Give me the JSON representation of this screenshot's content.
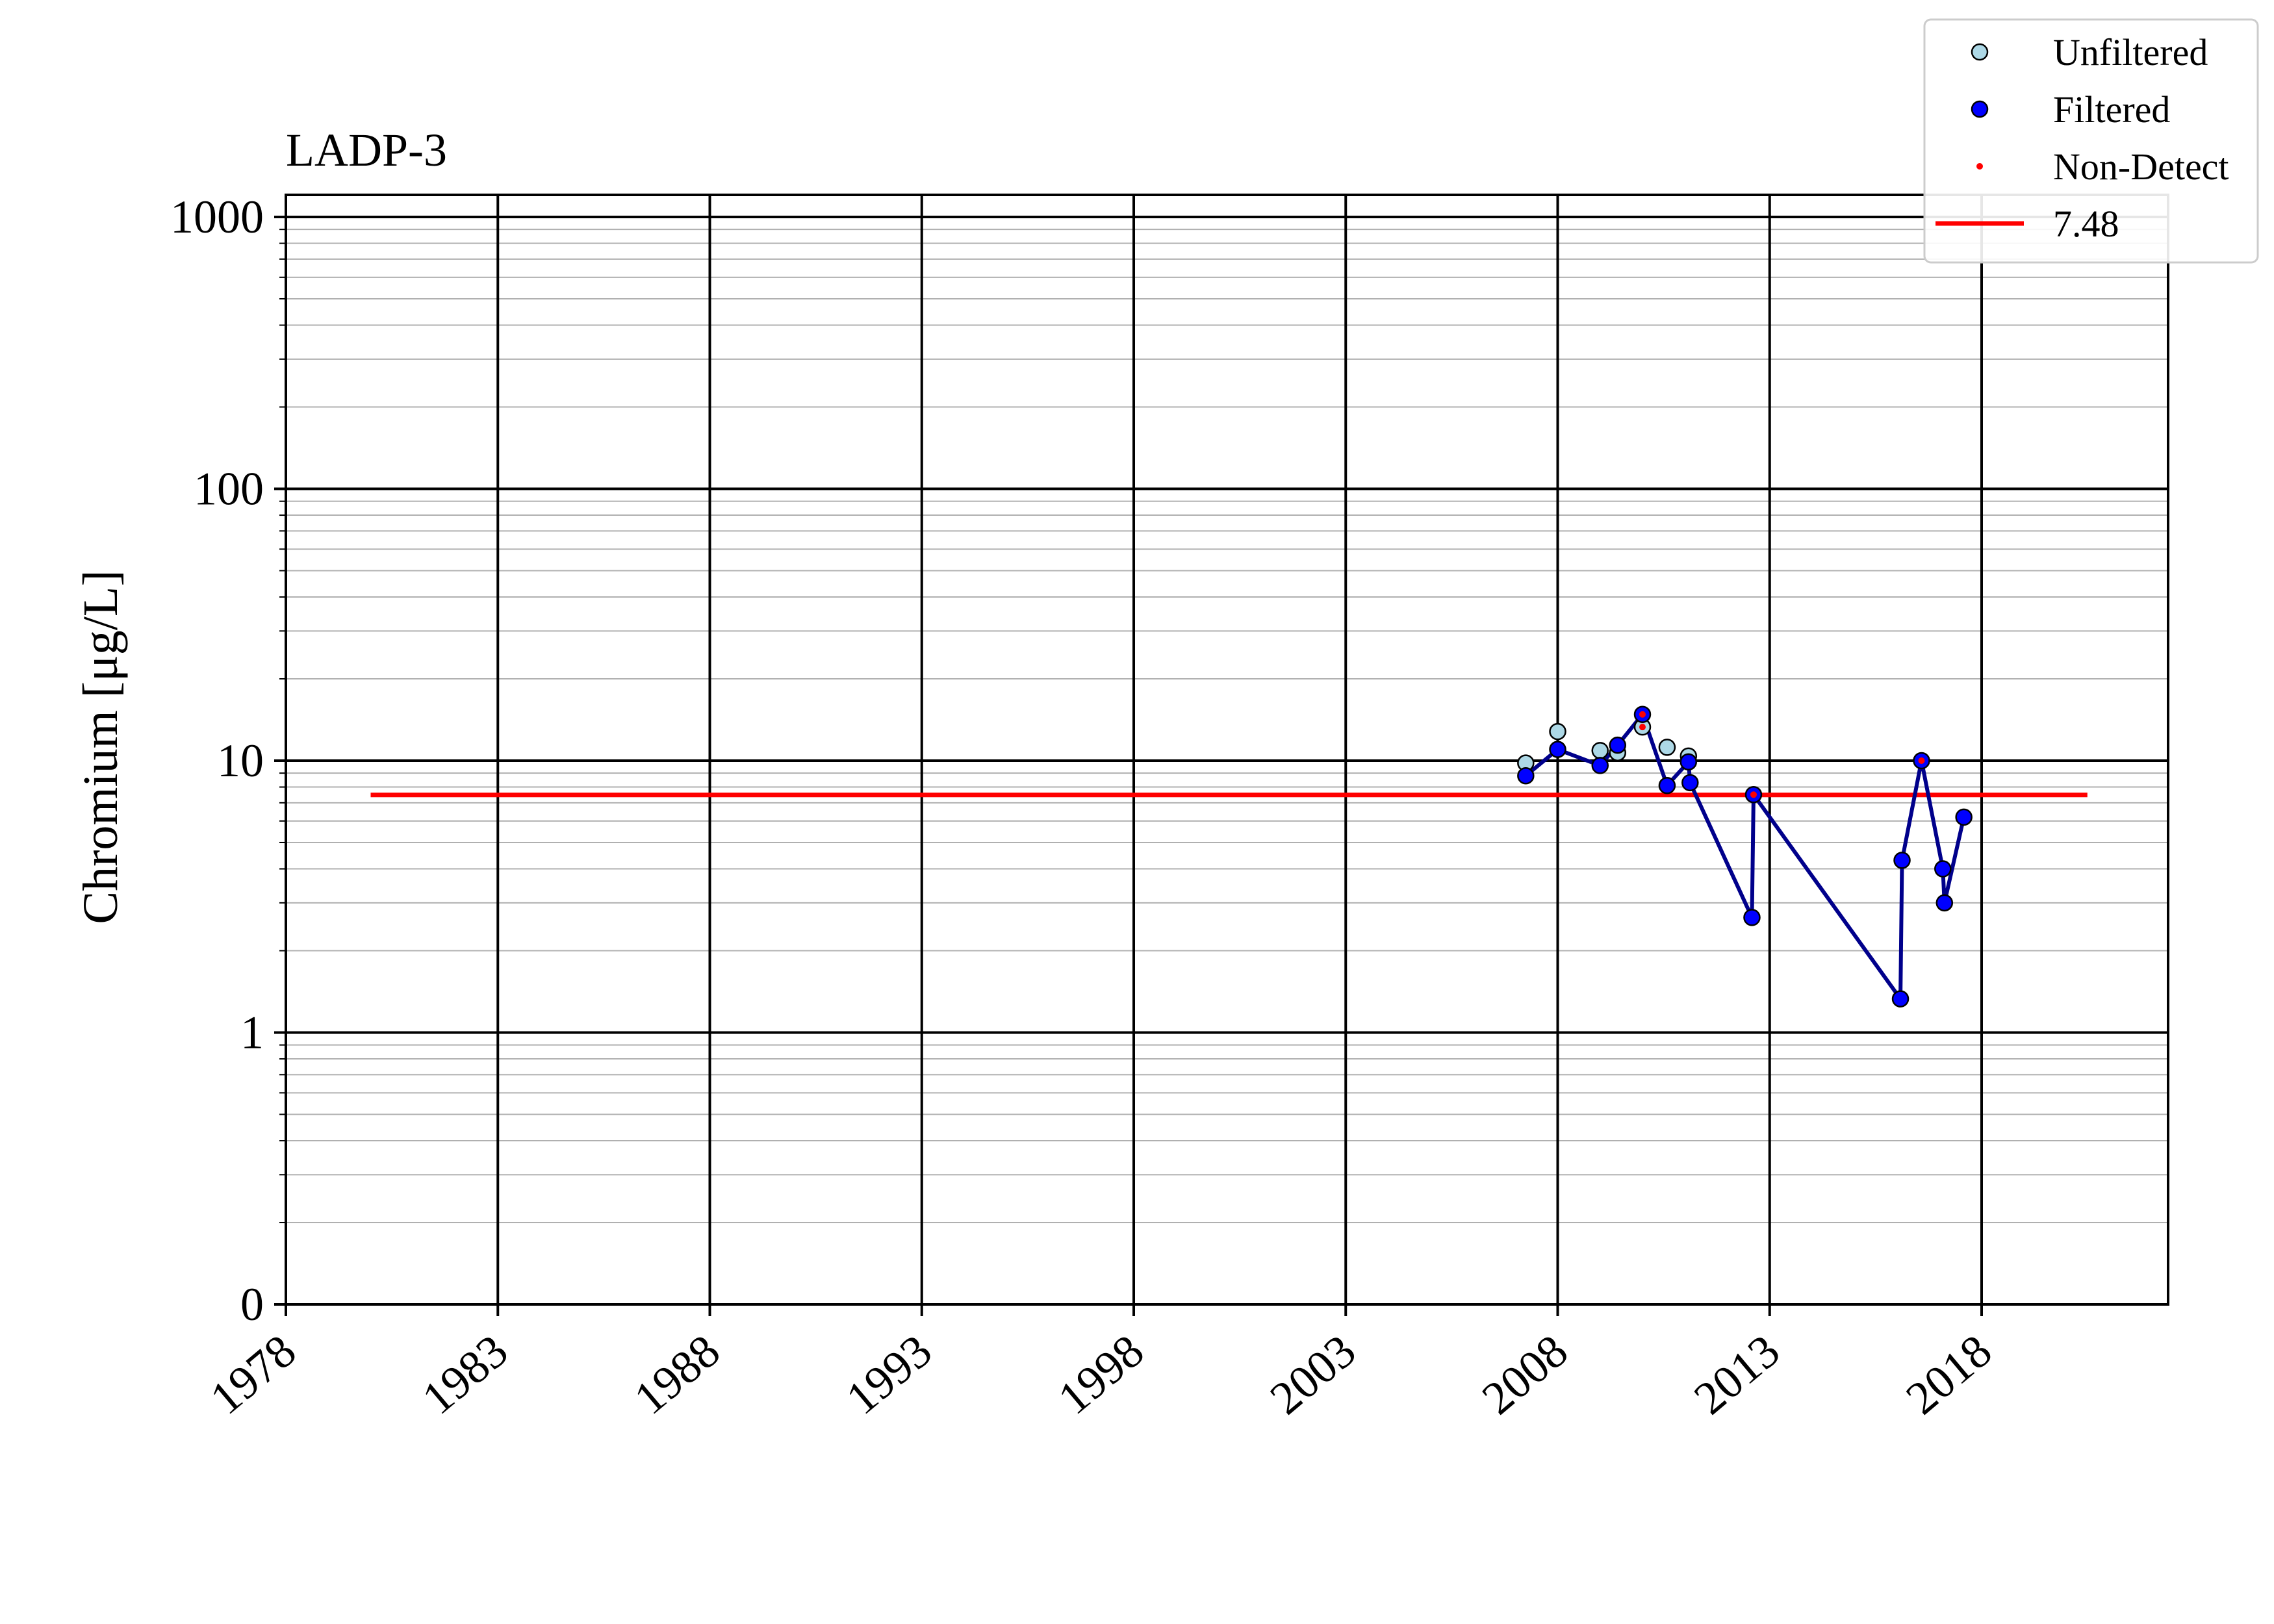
{
  "chart_data": {
    "type": "line",
    "title": "LADP-3",
    "xlabel": "",
    "ylabel": "Chromium [μg/L]",
    "xscale": "time",
    "yscale": "log",
    "xlim": [
      "1978-01-01",
      "2020-12-31"
    ],
    "x_ticks": [
      "1978",
      "1983",
      "1988",
      "1993",
      "1998",
      "2003",
      "2008",
      "2013",
      "2018"
    ],
    "y_ticks": [
      {
        "value": 0.1,
        "label": "0"
      },
      {
        "value": 1,
        "label": "1"
      },
      {
        "value": 10,
        "label": "10"
      },
      {
        "value": 100,
        "label": "100"
      },
      {
        "value": 1000,
        "label": "1000"
      }
    ],
    "ylim": [
      0.1,
      1200
    ],
    "grid": {
      "major": true,
      "minor_y": true
    },
    "legend": {
      "placement": "top-right",
      "entries": [
        {
          "label": "Unfiltered",
          "kind": "marker",
          "color": "#add8e6"
        },
        {
          "label": "Filtered",
          "kind": "marker",
          "color": "#0000ff"
        },
        {
          "label": "Non-Detect",
          "kind": "dot",
          "color": "#ff0000"
        },
        {
          "label": "7.48",
          "kind": "line",
          "color": "#ff0000"
        }
      ]
    },
    "colors": {
      "unfiltered": "#add8e6",
      "filtered": "#0000ff",
      "series_line": "#00008b",
      "non_detect": "#ff0000",
      "threshold": "#ff0000",
      "marker_edge": "#000000"
    },
    "threshold": {
      "value": 7.48,
      "label": "7.48",
      "x_start": "1980-01-01",
      "x_end": "2020-06-30"
    },
    "series": [
      {
        "name": "Unfiltered",
        "points": [
          {
            "x": "2007-04-01",
            "y": 9.8
          },
          {
            "x": "2008-01-01",
            "y": 12.8
          },
          {
            "x": "2009-01-01",
            "y": 10.9
          },
          {
            "x": "2009-06-01",
            "y": 10.7
          },
          {
            "x": "2010-01-01",
            "y": 13.3,
            "non_detect": true
          },
          {
            "x": "2010-08-01",
            "y": 11.2
          },
          {
            "x": "2011-02-01",
            "y": 10.4
          }
        ]
      },
      {
        "name": "Filtered",
        "points": [
          {
            "x": "2007-04-01",
            "y": 8.8
          },
          {
            "x": "2008-01-01",
            "y": 11.0
          },
          {
            "x": "2009-01-01",
            "y": 9.6
          },
          {
            "x": "2009-06-01",
            "y": 11.4
          },
          {
            "x": "2010-01-01",
            "y": 14.8,
            "non_detect": true
          },
          {
            "x": "2010-08-01",
            "y": 8.1
          },
          {
            "x": "2011-02-01",
            "y": 9.9
          },
          {
            "x": "2011-02-15",
            "y": 8.3
          },
          {
            "x": "2012-08-01",
            "y": 2.65
          },
          {
            "x": "2012-08-15",
            "y": 7.5,
            "non_detect": true
          },
          {
            "x": "2016-02-01",
            "y": 1.33
          },
          {
            "x": "2016-02-15",
            "y": 4.3
          },
          {
            "x": "2016-08-01",
            "y": 10.0,
            "non_detect": true
          },
          {
            "x": "2017-02-01",
            "y": 4.0
          },
          {
            "x": "2017-02-15",
            "y": 3.0
          },
          {
            "x": "2017-08-01",
            "y": 6.2
          }
        ]
      }
    ]
  }
}
